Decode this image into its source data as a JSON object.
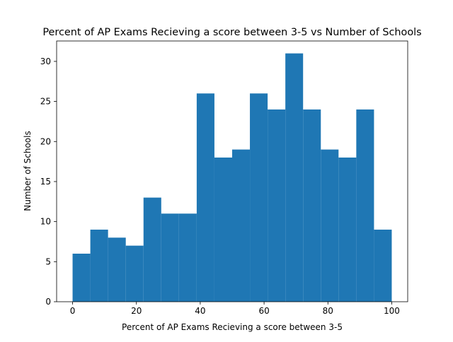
{
  "chart_data": {
    "type": "bar",
    "title": "Percent of AP Exams Recieving a score between 3-5 vs Number of Schools",
    "xlabel": "Percent of AP Exams Recieving a score between 3-5",
    "ylabel": "Number of Schools",
    "bin_edges": [
      0,
      5.5556,
      11.1111,
      16.6667,
      22.2222,
      27.7778,
      33.3333,
      38.8889,
      44.4444,
      50,
      55.5556,
      61.1111,
      66.6667,
      72.2222,
      77.7778,
      83.3333,
      88.8889,
      94.4444,
      100
    ],
    "values": [
      6,
      9,
      8,
      7,
      13,
      11,
      11,
      26,
      18,
      19,
      26,
      24,
      31,
      24,
      19,
      18,
      24,
      9
    ],
    "xlim": [
      -5,
      105
    ],
    "ylim": [
      0,
      32.55
    ],
    "xticks": [
      0,
      20,
      40,
      60,
      80,
      100
    ],
    "yticks": [
      0,
      5,
      10,
      15,
      20,
      25,
      30
    ],
    "grid": false,
    "legend": "none",
    "bar_color": "#1f77b4"
  }
}
